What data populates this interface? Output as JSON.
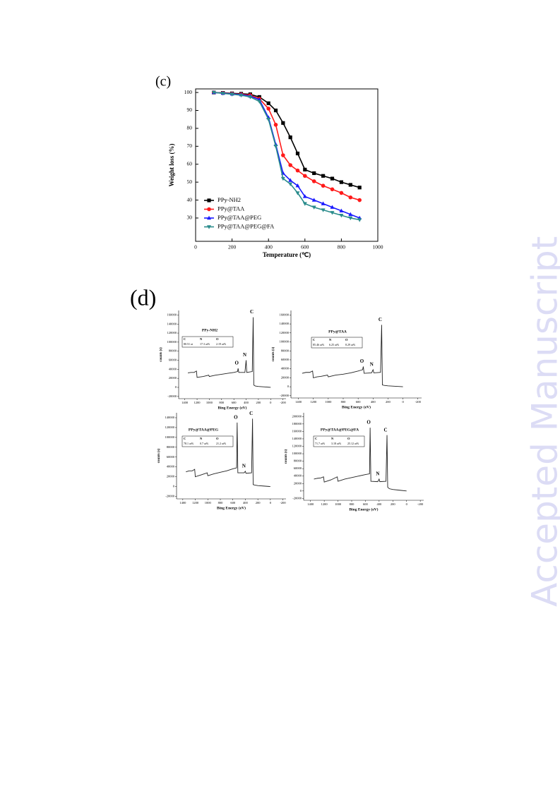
{
  "labels": [
    "(c)",
    "(d)"
  ],
  "watermark": "Accepted Manuscript",
  "chart_data": [
    {
      "type": "line",
      "xlabel": "Temperature (℃)",
      "ylabel": "Weight loss (%)",
      "x": [
        100,
        150,
        200,
        250,
        300,
        350,
        400,
        440,
        480,
        520,
        560,
        600,
        650,
        700,
        750,
        800,
        850,
        900
      ],
      "xlim": [
        0,
        1000
      ],
      "xticks": [
        0,
        200,
        400,
        600,
        800,
        1000
      ],
      "ylim": [
        17,
        102
      ],
      "yticks": [
        30,
        40,
        50,
        60,
        70,
        80,
        90,
        100
      ],
      "legend": "lower left",
      "series": [
        {
          "name": "PPy-NH2",
          "color": "#000000",
          "marker": "square",
          "values": [
            100,
            99.8,
            99.5,
            99.3,
            99,
            97.5,
            94,
            90,
            83,
            75,
            66,
            57,
            55,
            53.5,
            52,
            50,
            48.5,
            47
          ]
        },
        {
          "name": "PPy@TAA",
          "color": "#ff1a1a",
          "marker": "circle",
          "values": [
            100,
            99.7,
            99.3,
            99,
            98.5,
            96.5,
            91,
            82,
            65,
            59.5,
            56.5,
            53.5,
            50.5,
            48,
            46,
            44,
            41.5,
            40
          ]
        },
        {
          "name": "PPy@TAA@PEG",
          "color": "#1a1aff",
          "marker": "triangle-up",
          "values": [
            100,
            99.6,
            99.2,
            98.8,
            98,
            96,
            86,
            71,
            55,
            51,
            48,
            42,
            40,
            38,
            36,
            34,
            32,
            30
          ]
        },
        {
          "name": "PPy@TAA@PEG@FA",
          "color": "#2a8c8c",
          "marker": "triangle-down",
          "values": [
            100,
            99.5,
            99,
            98.5,
            97.5,
            95,
            85,
            70,
            52,
            49,
            44,
            38,
            36,
            34.5,
            33,
            31.5,
            30,
            29
          ]
        }
      ]
    },
    {
      "type": "spectrum",
      "title": "PPy-NH2",
      "xlabel": "Bing Energy (eV)",
      "ylabel": "counts (s)",
      "table": {
        "header": [
          "C",
          "N",
          "O"
        ],
        "row": [
          "80.51 at",
          "17.3 at%",
          "2.19 at%"
        ]
      },
      "x": [
        1350,
        1300,
        1250,
        1210,
        1200,
        1150,
        1100,
        1010,
        1000,
        900,
        800,
        700,
        600,
        540,
        531,
        520,
        420,
        400,
        390,
        300,
        285,
        275,
        250,
        200,
        100,
        0
      ],
      "xlim": [
        1500,
        -250
      ],
      "xticks": [
        1400,
        1200,
        1000,
        800,
        600,
        400,
        200,
        0,
        -200
      ],
      "ylim": [
        -25000,
        170000
      ],
      "yticks": [
        -20000,
        0,
        20000,
        40000,
        60000,
        80000,
        100000,
        120000,
        140000,
        160000
      ],
      "series": [
        {
          "color": "#222222",
          "values": [
            32000,
            33000,
            33000,
            36000,
            22000,
            23000,
            24000,
            27000,
            24000,
            27000,
            29000,
            31000,
            33000,
            35000,
            42000,
            33000,
            33000,
            60000,
            33000,
            35000,
            155000,
            5000,
            3000,
            2000,
            1000,
            0
          ]
        }
      ],
      "annotations": [
        {
          "text": "C",
          "x": 285
        },
        {
          "text": "N",
          "x": 400
        },
        {
          "text": "O",
          "x": 531
        }
      ]
    },
    {
      "type": "spectrum",
      "title": "PPy@TAA",
      "xlabel": "Bing Energy (eV)",
      "ylabel": "counts (s)",
      "table": {
        "header": [
          "C",
          "N",
          "O"
        ],
        "row": [
          "85.46 at%",
          "6.25 at%",
          "8.29 at%"
        ]
      },
      "x": [
        1350,
        1300,
        1250,
        1210,
        1200,
        1150,
        1100,
        1010,
        1000,
        900,
        800,
        700,
        600,
        540,
        531,
        520,
        420,
        400,
        390,
        300,
        285,
        275,
        250,
        200,
        100,
        0
      ],
      "xlim": [
        1500,
        -250
      ],
      "xticks": [
        1400,
        1200,
        1000,
        800,
        600,
        400,
        200,
        0,
        -200
      ],
      "ylim": [
        -25000,
        170000
      ],
      "yticks": [
        -20000,
        0,
        20000,
        40000,
        60000,
        80000,
        100000,
        120000,
        140000,
        160000
      ],
      "series": [
        {
          "color": "#222222",
          "values": [
            30000,
            32000,
            32000,
            35000,
            20000,
            22000,
            23000,
            26000,
            22000,
            26000,
            28000,
            31000,
            35000,
            38000,
            45000,
            30000,
            31000,
            38000,
            31000,
            32000,
            138000,
            4000,
            3000,
            2000,
            1000,
            0
          ]
        }
      ],
      "annotations": [
        {
          "text": "C",
          "x": 285
        },
        {
          "text": "N",
          "x": 400
        },
        {
          "text": "O",
          "x": 531
        }
      ]
    },
    {
      "type": "spectrum",
      "title": "PPy@TAA@PEG",
      "xlabel": "Bing Energy (eV)",
      "ylabel": "counts (s)",
      "table": {
        "header": [
          "C",
          "N",
          "O"
        ],
        "row": [
          "78.1 at%",
          "0.7 at%",
          "21.2 at%"
        ]
      },
      "x": [
        1350,
        1300,
        1250,
        1210,
        1200,
        1150,
        1100,
        1010,
        1000,
        900,
        800,
        700,
        600,
        540,
        531,
        520,
        420,
        400,
        390,
        300,
        285,
        275,
        250,
        200,
        100,
        0
      ],
      "xlim": [
        1500,
        -250
      ],
      "xticks": [
        1400,
        1200,
        1000,
        800,
        600,
        400,
        200,
        0,
        -200
      ],
      "ylim": [
        -25000,
        150000
      ],
      "yticks": [
        -20000,
        0,
        20000,
        40000,
        60000,
        80000,
        100000,
        120000,
        140000
      ],
      "series": [
        {
          "color": "#222222",
          "values": [
            30000,
            32000,
            32000,
            35000,
            20000,
            22000,
            24000,
            28000,
            22000,
            26000,
            29000,
            32000,
            36000,
            38000,
            130000,
            28000,
            28000,
            31000,
            27000,
            28000,
            138000,
            4000,
            3000,
            2000,
            1000,
            0
          ]
        }
      ],
      "annotations": [
        {
          "text": "C",
          "x": 285
        },
        {
          "text": "N",
          "x": 400
        },
        {
          "text": "O",
          "x": 531
        }
      ]
    },
    {
      "type": "spectrum",
      "title": "PPy@TAA@PEG@FA",
      "xlabel": "Bing Energy (eV)",
      "ylabel": "counts (s)",
      "table": {
        "header": [
          "C",
          "N",
          "O"
        ],
        "row": [
          "71.7 at%",
          "3.18 at%",
          "25.12 at%"
        ]
      },
      "x": [
        1350,
        1300,
        1250,
        1210,
        1200,
        1150,
        1100,
        1010,
        1000,
        900,
        800,
        700,
        600,
        540,
        531,
        520,
        420,
        400,
        390,
        300,
        285,
        275,
        250,
        200,
        100,
        0
      ],
      "xlim": [
        1500,
        -250
      ],
      "xticks": [
        1400,
        1200,
        1000,
        800,
        600,
        400,
        200,
        0,
        -200
      ],
      "ylim": [
        -25000,
        210000
      ],
      "yticks": [
        -20000,
        0,
        20000,
        40000,
        60000,
        80000,
        100000,
        120000,
        140000,
        160000,
        180000,
        200000
      ],
      "series": [
        {
          "color": "#222222",
          "values": [
            32000,
            34000,
            35000,
            38000,
            24000,
            27000,
            30000,
            38000,
            26000,
            32000,
            36000,
            40000,
            44000,
            46000,
            170000,
            26000,
            25000,
            32000,
            25000,
            26000,
            150000,
            10000,
            6000,
            4000,
            2000,
            0
          ]
        }
      ],
      "annotations": [
        {
          "text": "C",
          "x": 285
        },
        {
          "text": "N",
          "x": 400
        },
        {
          "text": "O",
          "x": 531
        }
      ]
    }
  ]
}
